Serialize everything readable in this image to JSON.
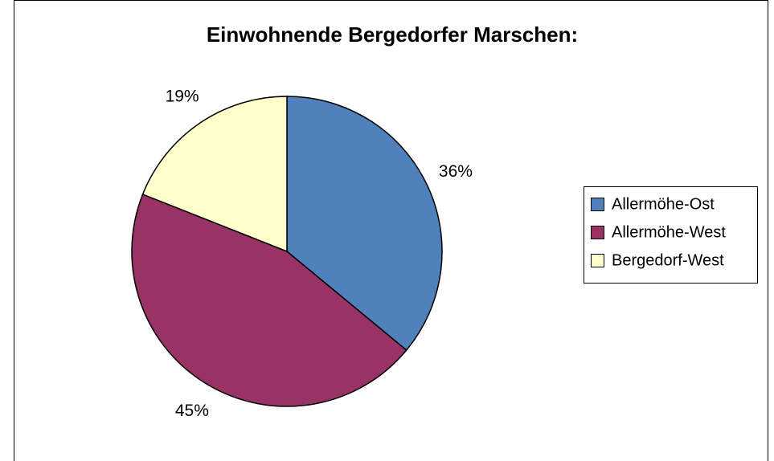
{
  "chart_data": {
    "type": "pie",
    "title": "Einwohnende Bergedorfer Marschen:",
    "categories": [
      "Allermöhe-Ost",
      "Allermöhe-West",
      "Bergedorf-West"
    ],
    "values": [
      36,
      45,
      19
    ],
    "value_labels": [
      "36%",
      "45%",
      "19%"
    ],
    "colors": [
      "#4f81bd",
      "#993366",
      "#ffffcc"
    ],
    "legend": "right"
  }
}
